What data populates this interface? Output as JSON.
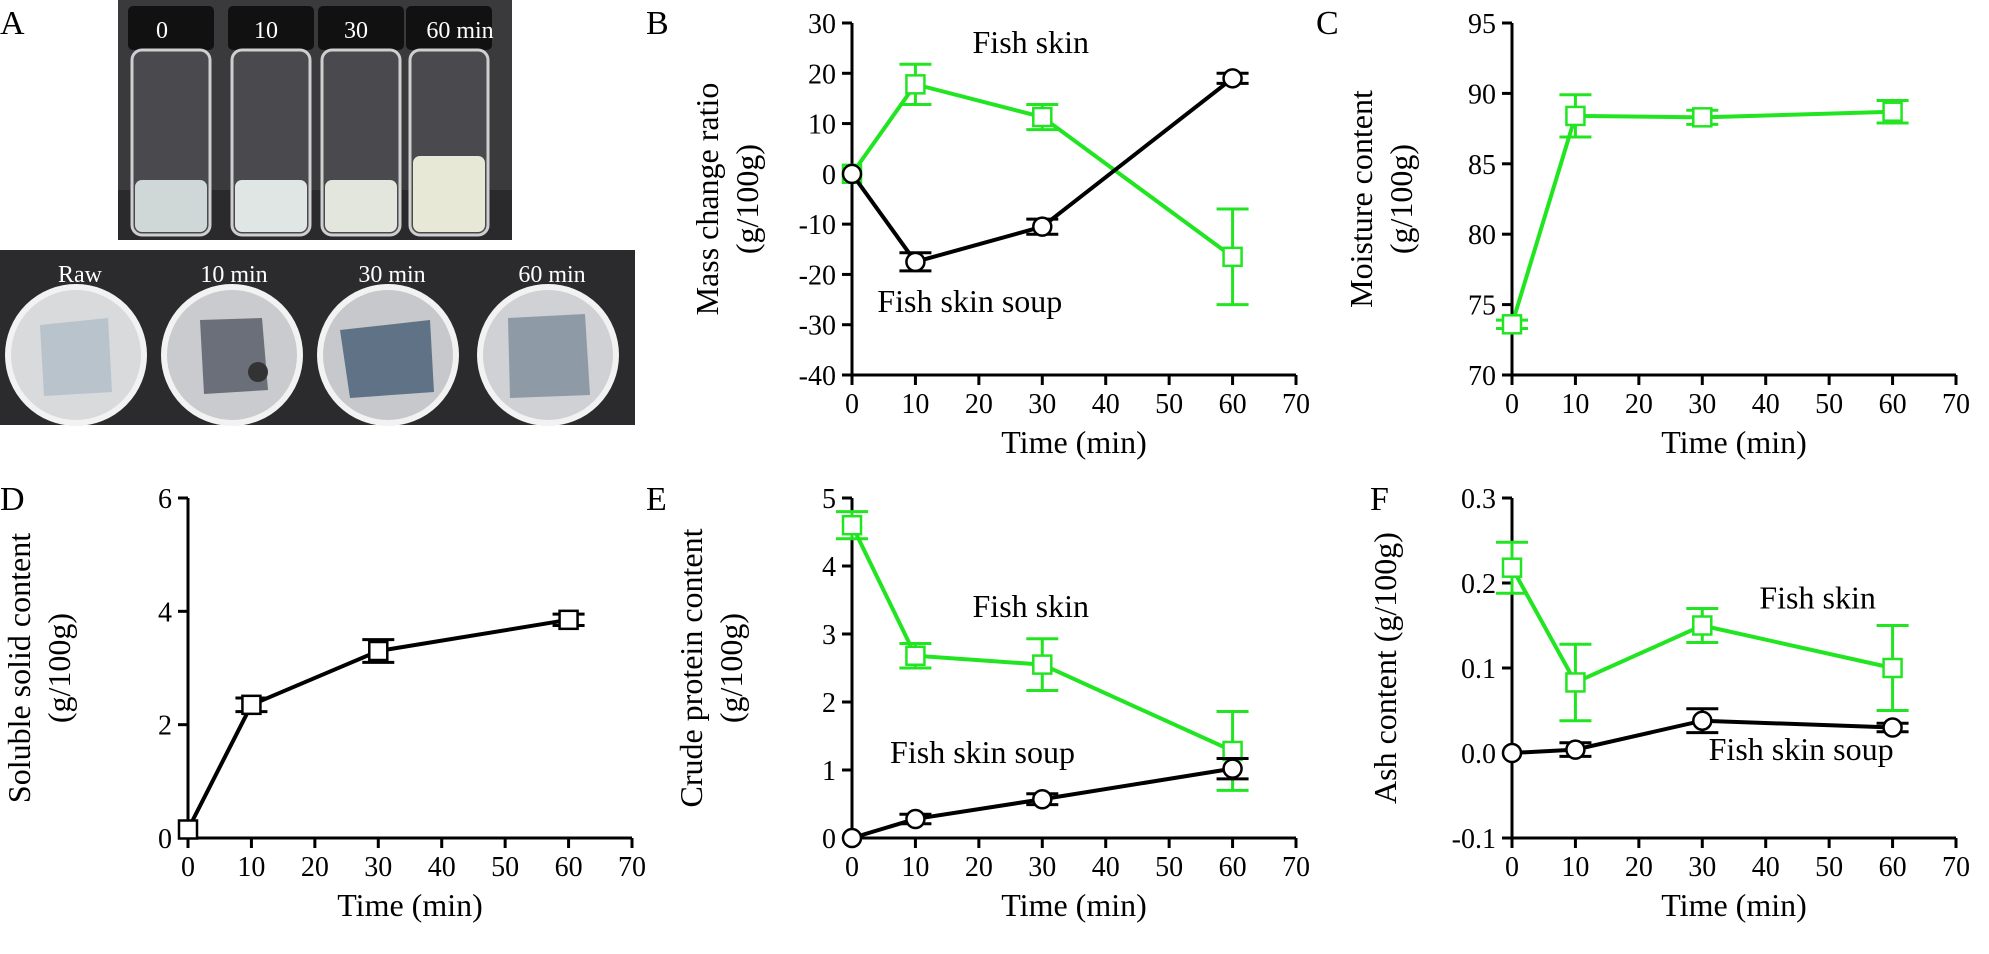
{
  "panel_A": {
    "letter": "A",
    "vial_labels": [
      "0",
      "10",
      "30",
      "60 min"
    ],
    "dish_labels": [
      "Raw",
      "10 min",
      "30 min",
      "60 min"
    ],
    "vial_liquid_colors": [
      "#cfd8d6",
      "#dfe6e3",
      "#e3e6dc",
      "#e8e8d6"
    ]
  },
  "chart_data": [
    {
      "panel": "B",
      "type": "line",
      "xlabel": "Time (min)",
      "ylabel": [
        "Mass change ratio",
        "(g/100g)"
      ],
      "xlim": [
        0,
        70
      ],
      "ylim": [
        -40,
        30
      ],
      "xticks": [
        0,
        10,
        20,
        30,
        40,
        50,
        60,
        70
      ],
      "yticks": [
        -40,
        -30,
        -20,
        -10,
        0,
        10,
        20,
        30
      ],
      "series": [
        {
          "name": "Fish skin",
          "color": "#22e522",
          "marker": "square",
          "x": [
            0,
            10,
            30,
            60
          ],
          "y": [
            0,
            17.8,
            11.3,
            -16.5
          ],
          "err": [
            0,
            4,
            2.5,
            9.5
          ]
        },
        {
          "name": "Fish skin soup",
          "color": "#000000",
          "marker": "circle",
          "x": [
            0,
            10,
            30,
            60
          ],
          "y": [
            0,
            -17.5,
            -10.5,
            19
          ],
          "err": [
            0,
            1.8,
            1.5,
            1
          ]
        }
      ],
      "annotations": [
        {
          "text": "Fish skin",
          "x": 19,
          "y": 24
        },
        {
          "text": "Fish skin soup",
          "x": 4,
          "y": -27.5
        }
      ]
    },
    {
      "panel": "C",
      "type": "line",
      "xlabel": "Time (min)",
      "ylabel": [
        "Moisture content",
        "(g/100g)"
      ],
      "xlim": [
        0,
        70
      ],
      "ylim": [
        70,
        95
      ],
      "xticks": [
        0,
        10,
        20,
        30,
        40,
        50,
        60,
        70
      ],
      "yticks": [
        70,
        75,
        80,
        85,
        90,
        95
      ],
      "series": [
        {
          "name": "",
          "color": "#22e522",
          "marker": "square",
          "x": [
            0,
            10,
            30,
            60
          ],
          "y": [
            73.6,
            88.4,
            88.3,
            88.7
          ],
          "err": [
            0.3,
            1.5,
            0.5,
            0.8
          ]
        }
      ],
      "annotations": []
    },
    {
      "panel": "D",
      "type": "line",
      "xlabel": "Time (min)",
      "ylabel": [
        "Soluble solid content",
        "(g/100g)"
      ],
      "xlim": [
        0,
        70
      ],
      "ylim": [
        0,
        6
      ],
      "xticks": [
        0,
        10,
        20,
        30,
        40,
        50,
        60,
        70
      ],
      "yticks": [
        0,
        2,
        4,
        6
      ],
      "series": [
        {
          "name": "",
          "color": "#000000",
          "marker": "square",
          "x": [
            0,
            10,
            30,
            60
          ],
          "y": [
            0.15,
            2.35,
            3.3,
            3.85
          ],
          "err": [
            0,
            0.12,
            0.2,
            0.1
          ]
        }
      ],
      "annotations": []
    },
    {
      "panel": "E",
      "type": "line",
      "xlabel": "Time (min)",
      "ylabel": [
        "Crude protein content",
        "(g/100g)"
      ],
      "xlim": [
        0,
        70
      ],
      "ylim": [
        0,
        5
      ],
      "xticks": [
        0,
        10,
        20,
        30,
        40,
        50,
        60,
        70
      ],
      "yticks": [
        0,
        1,
        2,
        3,
        4,
        5
      ],
      "series": [
        {
          "name": "Fish skin",
          "color": "#22e522",
          "marker": "square",
          "x": [
            0,
            10,
            30,
            60
          ],
          "y": [
            4.6,
            2.68,
            2.55,
            1.28
          ],
          "err": [
            0.2,
            0.18,
            0.38,
            0.58
          ]
        },
        {
          "name": "Fish skin soup",
          "color": "#000000",
          "marker": "circle",
          "x": [
            0,
            10,
            30,
            60
          ],
          "y": [
            0,
            0.28,
            0.57,
            1.02
          ],
          "err": [
            0,
            0.07,
            0.08,
            0.15
          ]
        }
      ],
      "annotations": [
        {
          "text": "Fish skin",
          "x": 19,
          "y": 3.25
        },
        {
          "text": "Fish skin soup",
          "x": 6,
          "y": 1.1
        }
      ]
    },
    {
      "panel": "F",
      "type": "line",
      "xlabel": "Time (min)",
      "ylabel": [
        "Ash content (g/100g)"
      ],
      "xlim": [
        0,
        70
      ],
      "ylim": [
        -0.1,
        0.3
      ],
      "xticks": [
        0,
        10,
        20,
        30,
        40,
        50,
        60,
        70
      ],
      "yticks": [
        -0.1,
        0.0,
        0.1,
        0.2,
        0.3
      ],
      "ytick_labels": [
        "-0.1",
        "0.0",
        "0.1",
        "0.2",
        "0.3"
      ],
      "series": [
        {
          "name": "Fish skin",
          "color": "#22e522",
          "marker": "square",
          "x": [
            0,
            10,
            30,
            60
          ],
          "y": [
            0.218,
            0.083,
            0.15,
            0.1
          ],
          "err": [
            0.03,
            0.045,
            0.02,
            0.05
          ]
        },
        {
          "name": "Fish skin soup",
          "color": "#000000",
          "marker": "circle",
          "x": [
            0,
            10,
            30,
            60
          ],
          "y": [
            0,
            0.004,
            0.038,
            0.03
          ],
          "err": [
            0,
            0.008,
            0.014,
            0.005
          ]
        }
      ],
      "annotations": [
        {
          "text": "Fish skin",
          "x": 39,
          "y": 0.17
        },
        {
          "text": "Fish skin soup",
          "x": 31,
          "y": -0.008
        }
      ]
    }
  ]
}
